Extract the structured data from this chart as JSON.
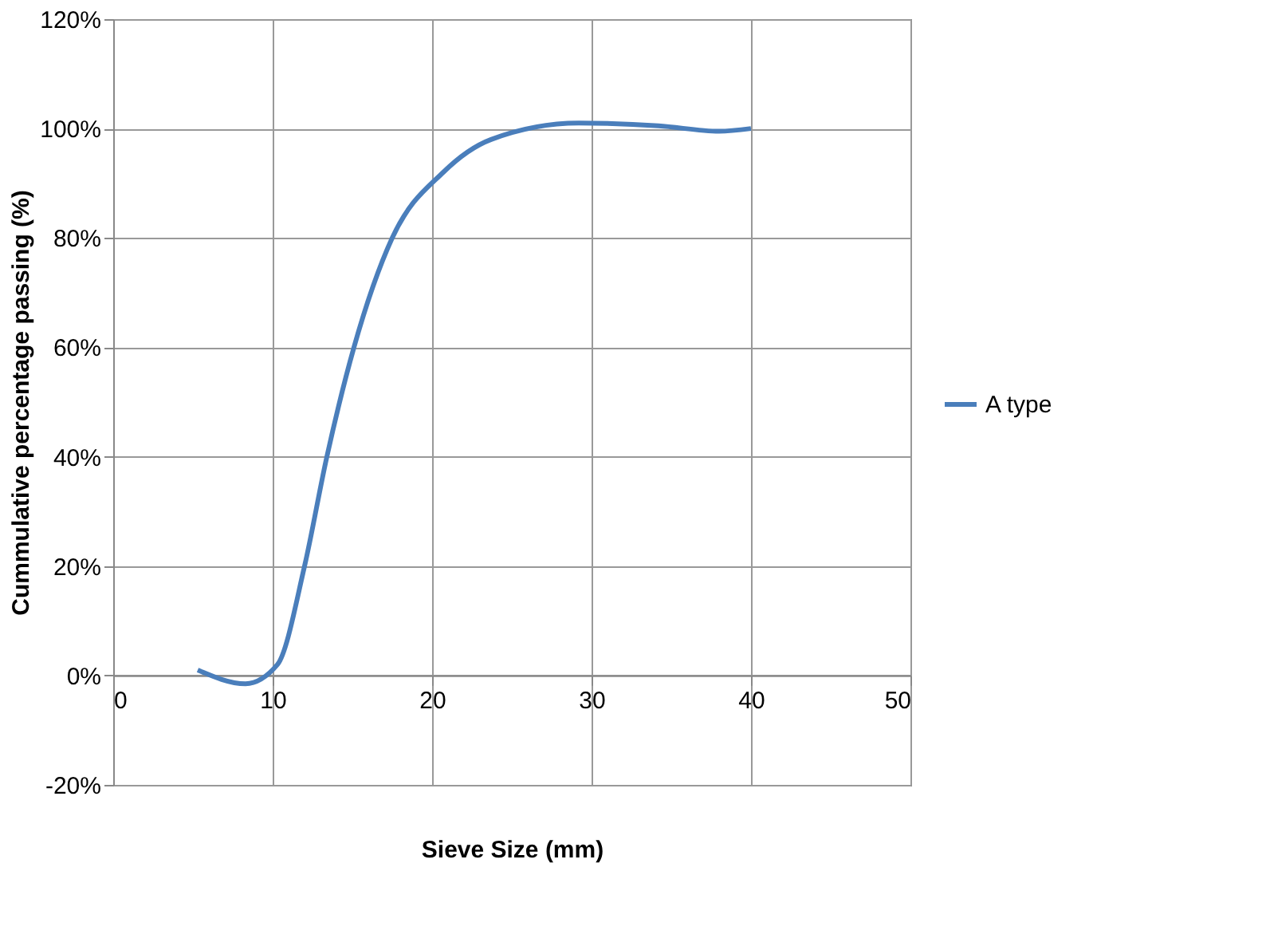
{
  "chart_data": {
    "type": "line",
    "xlabel": "Sieve Size (mm)",
    "ylabel": "Cummulative percentage passing (%)",
    "xlim": [
      0,
      50
    ],
    "xticks": [
      0,
      10,
      20,
      30,
      40,
      50
    ],
    "ylim": [
      -20,
      120
    ],
    "yticks": [
      {
        "value": -20,
        "label": "-20%"
      },
      {
        "value": 0,
        "label": "0%"
      },
      {
        "value": 20,
        "label": "20%"
      },
      {
        "value": 40,
        "label": "40%"
      },
      {
        "value": 60,
        "label": "60%"
      },
      {
        "value": 80,
        "label": "80%"
      },
      {
        "value": 100,
        "label": "100%"
      },
      {
        "value": 120,
        "label": "120%"
      }
    ],
    "grid": true,
    "legend": "right",
    "marker": "none",
    "line_style": "solid",
    "series": [
      {
        "name": "A type",
        "color": "#4a7ebb",
        "x": [
          5.3,
          8.3,
          10.3,
          12,
          13.4,
          15.1,
          17.5,
          20.7,
          23.7,
          29.2,
          34.2,
          38,
          40
        ],
        "values": [
          1,
          -1.5,
          2,
          20,
          40,
          60,
          80,
          92,
          98,
          101,
          100.5,
          99.5,
          100
        ]
      }
    ]
  }
}
